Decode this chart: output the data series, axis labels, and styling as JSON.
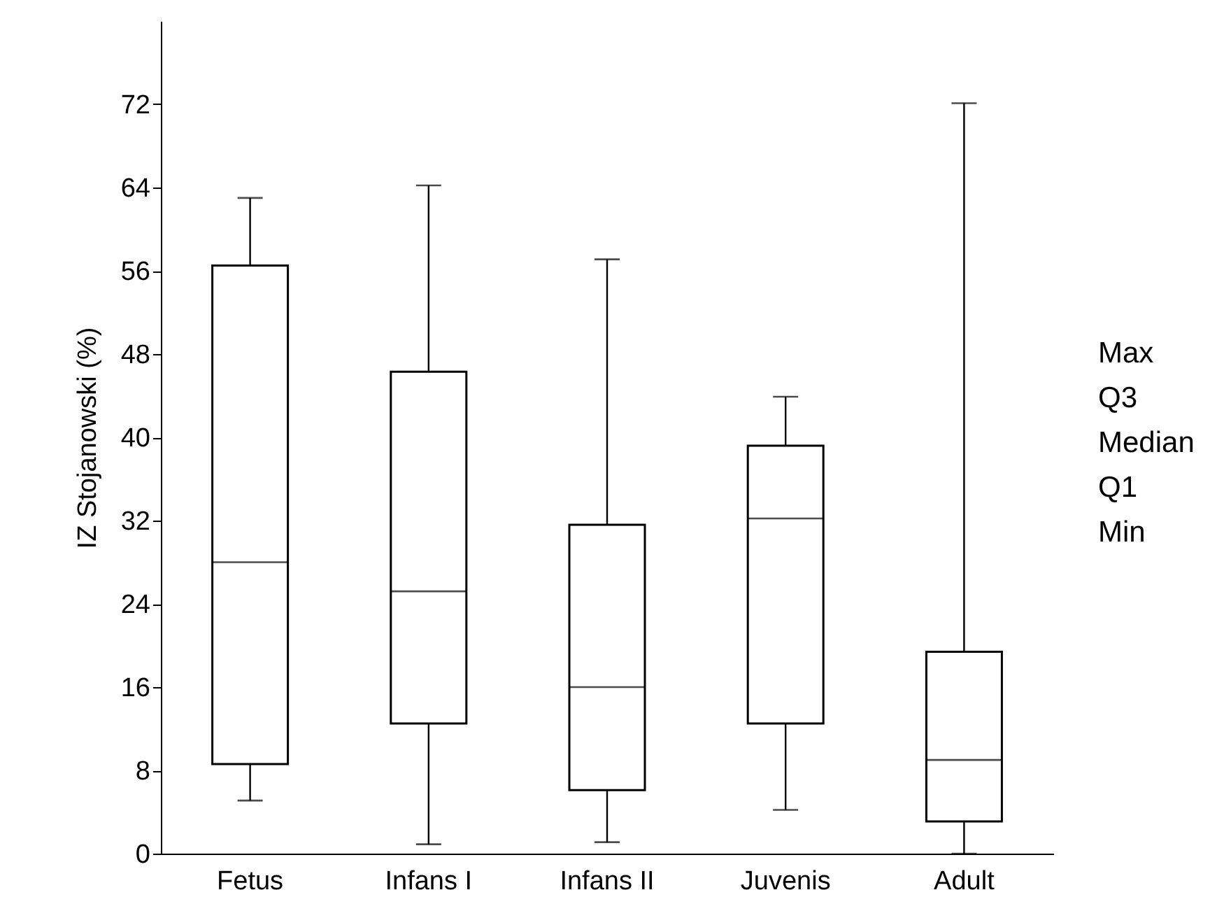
{
  "chart_data": {
    "type": "box",
    "ylabel": "IZ Stojanowski (%)",
    "categories": [
      "Fetus",
      "Infans I",
      "Infans II",
      "Juvenis",
      "Adult"
    ],
    "boxes": [
      {
        "low": 5.1,
        "q1": 8.6,
        "median": 28,
        "q3": 56.5,
        "high": 63
      },
      {
        "low": 0.9,
        "q1": 12.5,
        "median": 25.2,
        "q3": 46.3,
        "high": 64.2
      },
      {
        "low": 1.1,
        "q1": 6.1,
        "median": 16,
        "q3": 31.6,
        "high": 57.1
      },
      {
        "low": 4.2,
        "q1": 12.5,
        "median": 32.2,
        "q3": 39.2,
        "high": 43.9
      },
      {
        "low": 0,
        "q1": 3.1,
        "median": 9,
        "q3": 19.4,
        "high": 72.1
      }
    ],
    "color": "#ffffff",
    "ylim": [
      0,
      80
    ],
    "yticks": [
      0,
      8,
      16,
      24,
      32,
      40,
      48,
      56,
      64,
      72
    ],
    "grid": false,
    "annotations": [
      "Max",
      "Q3",
      "Median",
      "Q1",
      "Min"
    ]
  }
}
